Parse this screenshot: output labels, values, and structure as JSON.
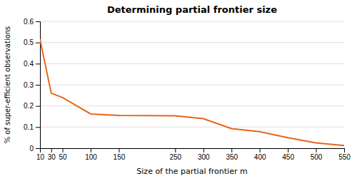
{
  "chart_data": {
    "type": "line",
    "title": "Determining partial frontier size",
    "xlabel": "Size of the partial frontier m",
    "ylabel": "% of super-efficient observations",
    "x": [
      10,
      30,
      50,
      100,
      150,
      250,
      300,
      350,
      400,
      450,
      500,
      550
    ],
    "values": [
      0.515,
      0.26,
      0.24,
      0.162,
      0.155,
      0.153,
      0.14,
      0.093,
      0.078,
      0.05,
      0.025,
      0.013
    ],
    "color": "#E8651A",
    "xlim": [
      10,
      550
    ],
    "ylim": [
      0,
      0.6
    ],
    "xticks": [
      10,
      30,
      50,
      100,
      150,
      250,
      300,
      350,
      400,
      450,
      500,
      550
    ],
    "yticks": [
      0,
      0.1,
      0.2,
      0.3,
      0.4,
      0.5,
      0.6
    ],
    "grid": true
  }
}
